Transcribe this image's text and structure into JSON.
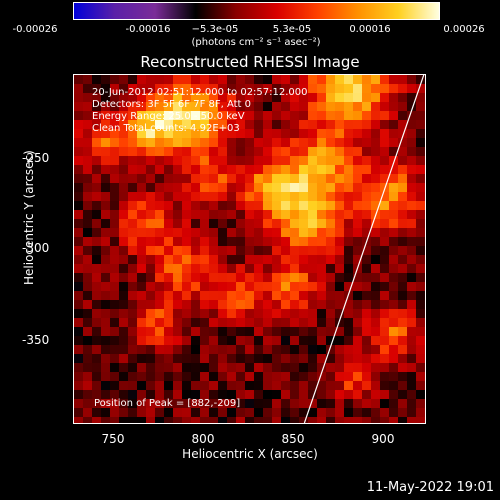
{
  "chart_data": {
    "type": "heatmap",
    "title": "Reconstructed RHESSI Image",
    "xlabel": "Heliocentric X (arcsec)",
    "ylabel": "Heliocentric Y (arcsec)",
    "xlim": [
      729,
      924
    ],
    "ylim": [
      -396,
      -202
    ],
    "x_ticks": [
      "750",
      "800",
      "850",
      "900"
    ],
    "y_ticks": [
      "-250",
      "-300",
      "-350"
    ],
    "colorbar": {
      "ticks": [
        "-0.00026",
        "-0.00016",
        "−5.3e-05",
        "5.3e-05",
        "0.00016",
        "0.00026"
      ],
      "range": [
        -0.00026,
        0.00026
      ],
      "unit_label": "(photons cm⁻² s⁻¹ asec⁻²)"
    },
    "info_lines": [
      "20-Jun-2012 02:51:12.000 to 02:57:12.000",
      "Detectors: 3F 5F 6F 7F 8F, Att 0",
      "Energy Range: 25.0 - 50.0 keV",
      "Clean     Total counts: 4.92E+03"
    ],
    "peak_text": "Position of Peak = [882,-209]",
    "peak": [
      882,
      -209
    ],
    "limb_line": {
      "x": [
        857,
        924
      ],
      "y": [
        -396,
        -200
      ]
    },
    "colors": [
      "#0000d8",
      "#5a20a8",
      "#7a2c98",
      "#000000",
      "#8a0000",
      "#d80000",
      "#ff4000",
      "#ff9000",
      "#ffd020",
      "#ffffe0"
    ]
  },
  "timestamp": "11-May-2022 19:01"
}
